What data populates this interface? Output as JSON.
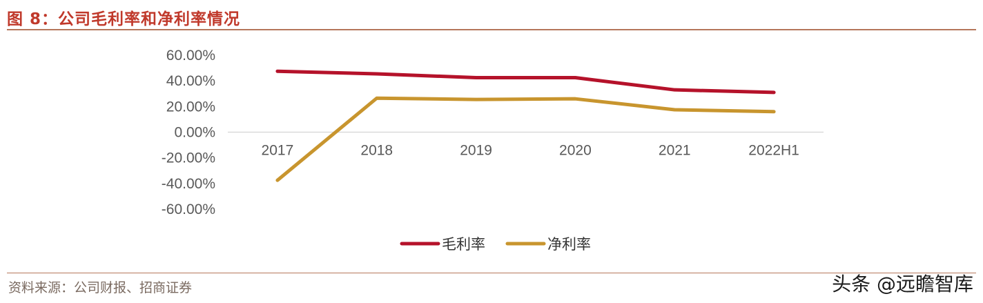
{
  "header": {
    "title": "图 8：公司毛利率和净利率情况"
  },
  "footer": {
    "source": "资料来源：公司财报、招商证券",
    "watermark": "头条 @远瞻智库"
  },
  "chart_data": {
    "type": "line",
    "categories": [
      "2017",
      "2018",
      "2019",
      "2020",
      "2021",
      "2022H1"
    ],
    "series": [
      {
        "name": "毛利率",
        "color": "#b5122a",
        "values": [
          47.5,
          45.5,
          42.5,
          42.5,
          33.0,
          31.0
        ]
      },
      {
        "name": "净利率",
        "color": "#c8952e",
        "values": [
          -37.5,
          26.5,
          25.5,
          26.0,
          17.5,
          16.0
        ]
      }
    ],
    "yticks": [
      "60.00%",
      "40.00%",
      "20.00%",
      "0.00%",
      "-20.00%",
      "-40.00%",
      "-60.00%"
    ],
    "ylim": [
      -60,
      60
    ],
    "xlabel": "",
    "ylabel": "",
    "grid": false,
    "legend": "bottom-center"
  }
}
